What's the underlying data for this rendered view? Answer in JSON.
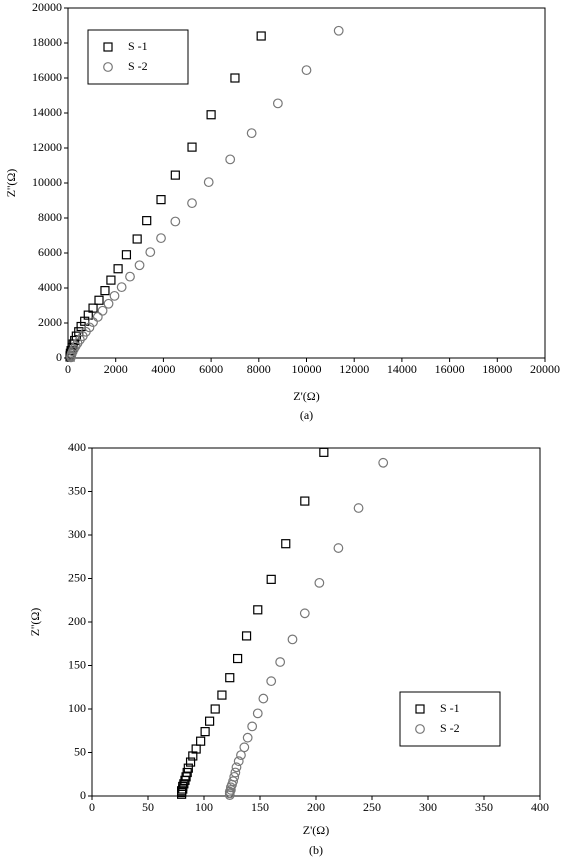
{
  "chart_data": [
    {
      "type": "scatter",
      "xlabel": "Z'(Ω)",
      "ylabel": "Z''(Ω)",
      "caption": "(a)",
      "xlim": [
        0,
        20000
      ],
      "ylim": [
        0,
        20000
      ],
      "xticks": [
        0,
        2000,
        4000,
        6000,
        8000,
        10000,
        12000,
        14000,
        16000,
        18000,
        20000
      ],
      "yticks": [
        0,
        2000,
        4000,
        6000,
        8000,
        10000,
        12000,
        14000,
        16000,
        18000,
        20000
      ],
      "legend": "upper left",
      "series": [
        {
          "name": "S -1",
          "color": "#000000",
          "marker": "square",
          "x": [
            8100,
            7000,
            6000,
            5200,
            4500,
            3900,
            3300,
            2900,
            2450,
            2100,
            1800,
            1550,
            1300,
            1050,
            850,
            700,
            550,
            450,
            350,
            280,
            220,
            170,
            130,
            100,
            90,
            85
          ],
          "values": [
            18400,
            16000,
            13900,
            12050,
            10450,
            9050,
            7850,
            6800,
            5900,
            5100,
            4450,
            3850,
            3300,
            2850,
            2450,
            2100,
            1800,
            1500,
            1250,
            1000,
            800,
            600,
            420,
            270,
            150,
            60
          ]
        },
        {
          "name": "S -2",
          "color": "#777777",
          "marker": "circle",
          "x": [
            11350,
            10000,
            8800,
            7700,
            6800,
            5900,
            5200,
            4500,
            3900,
            3450,
            3000,
            2600,
            2250,
            1950,
            1700,
            1450,
            1250,
            1050,
            900,
            750,
            620,
            500,
            400,
            320,
            250,
            200,
            160,
            140,
            130,
            125
          ],
          "values": [
            18700,
            16450,
            14550,
            12850,
            11350,
            10050,
            8850,
            7800,
            6850,
            6050,
            5300,
            4650,
            4050,
            3550,
            3100,
            2700,
            2350,
            2050,
            1750,
            1500,
            1250,
            1050,
            850,
            680,
            520,
            380,
            260,
            160,
            90,
            40
          ]
        }
      ]
    },
    {
      "type": "scatter",
      "xlabel": "Z'(Ω)",
      "ylabel": "Z''(Ω)",
      "caption": "(b)",
      "xlim": [
        0,
        400
      ],
      "ylim": [
        0,
        400
      ],
      "xticks": [
        0,
        50,
        100,
        150,
        200,
        250,
        300,
        350,
        400
      ],
      "yticks": [
        0,
        50,
        100,
        150,
        200,
        250,
        300,
        350,
        400
      ],
      "legend": "lower right",
      "series": [
        {
          "name": "S -1",
          "color": "#000000",
          "marker": "square",
          "x": [
            207,
            190,
            173,
            160,
            148,
            138,
            130,
            123,
            116,
            110,
            105,
            101,
            97,
            93,
            90,
            88,
            86,
            85,
            84,
            83,
            82,
            81,
            81,
            80,
            80,
            80
          ],
          "values": [
            395,
            339,
            290,
            249,
            214,
            184,
            158,
            136,
            116,
            100,
            86,
            74,
            63,
            54,
            46,
            39,
            32,
            27,
            22,
            18,
            14,
            11,
            8,
            6,
            4,
            2
          ]
        },
        {
          "name": "S -2",
          "color": "#777777",
          "marker": "circle",
          "x": [
            260,
            238,
            220,
            203,
            190,
            179,
            168,
            160,
            153,
            148,
            143,
            139,
            136,
            133,
            131,
            129,
            128,
            127,
            126,
            125,
            124,
            124,
            123,
            123,
            123
          ],
          "values": [
            383,
            331,
            285,
            245,
            210,
            180,
            154,
            132,
            112,
            95,
            80,
            67,
            56,
            47,
            40,
            33,
            27,
            22,
            17,
            13,
            10,
            7,
            5,
            3,
            1
          ]
        }
      ]
    }
  ]
}
